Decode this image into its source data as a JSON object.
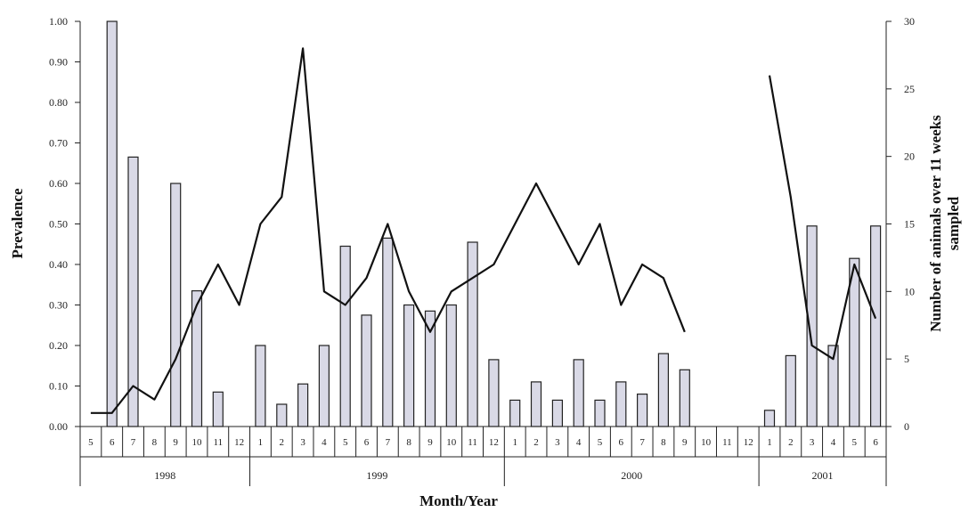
{
  "chart_data": {
    "type": "bar",
    "xlabel": "Month/Year",
    "ylabel_left": "Prevalence",
    "ylabel_right": [
      "Number of animals over 11 weeks",
      "sampled"
    ],
    "ylim_left": [
      0,
      1
    ],
    "ylim_right": [
      0,
      30
    ],
    "left_ticks": [
      "0.00",
      "0.10",
      "0.20",
      "0.30",
      "0.40",
      "0.50",
      "0.60",
      "0.70",
      "0.80",
      "0.90",
      "1.00"
    ],
    "right_ticks": [
      "0",
      "5",
      "10",
      "15",
      "20",
      "25",
      "30"
    ],
    "categories": [
      "5",
      "6",
      "7",
      "8",
      "9",
      "10",
      "11",
      "12",
      "1",
      "2",
      "3",
      "4",
      "5",
      "6",
      "7",
      "8",
      "9",
      "10",
      "11",
      "12",
      "1",
      "2",
      "3",
      "4",
      "5",
      "6",
      "7",
      "8",
      "9",
      "10",
      "11",
      "12",
      "1",
      "2",
      "3",
      "4",
      "5",
      "6"
    ],
    "years": [
      {
        "label": "1998",
        "start": 0,
        "end": 8
      },
      {
        "label": "1999",
        "start": 8,
        "end": 20
      },
      {
        "label": "2000",
        "start": 20,
        "end": 32
      },
      {
        "label": "2001",
        "start": 32,
        "end": 38
      }
    ],
    "series": [
      {
        "type": "bar",
        "axis": "left",
        "values": [
          null,
          1.0,
          0.665,
          null,
          0.6,
          0.335,
          0.085,
          null,
          0.2,
          0.055,
          0.105,
          0.2,
          0.445,
          0.275,
          0.465,
          0.3,
          0.285,
          0.3,
          0.455,
          0.165,
          0.065,
          0.11,
          0.065,
          0.165,
          0.065,
          0.11,
          0.08,
          0.18,
          0.14,
          null,
          null,
          null,
          0.04,
          0.175,
          0.495,
          0.2,
          0.415,
          0.495
        ]
      },
      {
        "type": "line",
        "axis": "right",
        "values": [
          1,
          1,
          3,
          2,
          5,
          9,
          12,
          9,
          15,
          17,
          28,
          10,
          9,
          11,
          15,
          10,
          7,
          10,
          11,
          12,
          15,
          18,
          15,
          12,
          15,
          9,
          12,
          11,
          7,
          null,
          null,
          null,
          26,
          17,
          6,
          5,
          12,
          8
        ]
      }
    ],
    "grid": false
  }
}
